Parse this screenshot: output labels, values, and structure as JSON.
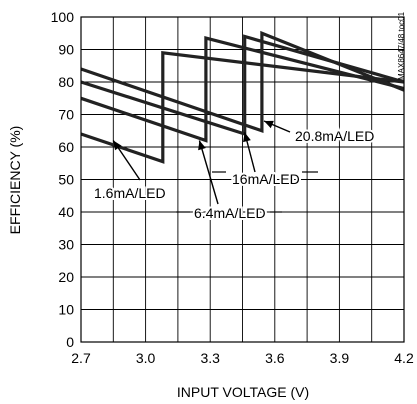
{
  "chart_data": {
    "type": "line",
    "title": "",
    "xlabel": "INPUT VOLTAGE (V)",
    "ylabel": "EFFICIENCY (%)",
    "xlim": [
      2.7,
      4.2
    ],
    "ylim": [
      0,
      100
    ],
    "x_ticks": [
      "2.7",
      "3.0",
      "3.3",
      "3.6",
      "3.9",
      "4.2"
    ],
    "y_ticks": [
      "0",
      "10",
      "20",
      "30",
      "40",
      "50",
      "60",
      "70",
      "80",
      "90",
      "100"
    ],
    "grid": true,
    "watermark": "MAX8647/48 toc01",
    "series": [
      {
        "name": "1.6mA/LED",
        "points": [
          [
            2.7,
            64
          ],
          [
            3.08,
            55.5
          ],
          [
            3.08,
            89
          ],
          [
            4.2,
            80
          ]
        ]
      },
      {
        "name": "6.4mA/LED",
        "points": [
          [
            2.7,
            75
          ],
          [
            3.28,
            62
          ],
          [
            3.28,
            93.5
          ],
          [
            4.2,
            78
          ]
        ]
      },
      {
        "name": "16mA/LED",
        "points": [
          [
            2.7,
            80
          ],
          [
            3.46,
            64
          ],
          [
            3.46,
            94
          ],
          [
            4.2,
            80
          ]
        ]
      },
      {
        "name": "20.8mA/LED",
        "points": [
          [
            2.7,
            84
          ],
          [
            3.54,
            65
          ],
          [
            3.54,
            95
          ],
          [
            4.2,
            77.5
          ]
        ]
      }
    ],
    "annotations": [
      {
        "text": "1.6mA/LED",
        "target": [
          2.85,
          62
        ]
      },
      {
        "text": "6.4mA/LED",
        "target": [
          3.25,
          62
        ]
      },
      {
        "text": "16mA/LED",
        "target": [
          3.46,
          64.5
        ]
      },
      {
        "text": "20.8mA/LED",
        "target": [
          3.55,
          68
        ]
      }
    ]
  }
}
